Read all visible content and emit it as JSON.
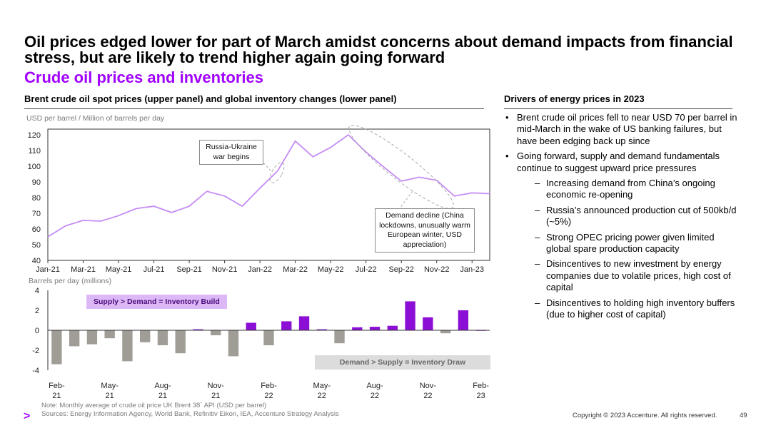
{
  "header": {
    "title": "Oil prices edged lower for part of March amidst concerns about demand impacts from financial stress, but are likely to trend higher again going forward",
    "subtitle": "Crude oil prices and inventories"
  },
  "left_panel": {
    "heading": "Brent crude oil spot prices (upper panel) and global inventory changes (lower panel)",
    "upper_unit": "USD per barrel / Million of barrels per day",
    "lower_unit": "Barrels per day (millions)",
    "callout_war": "Russia-Ukraine war begins",
    "callout_demand": "Demand decline (China lockdowns, unusually warm European winter, USD appreciation)",
    "tag_build": "Supply > Demand = Inventory Build",
    "tag_draw": "Demand > Supply = Inventory Draw",
    "note": "Note: Monthly average of crude oil price UK Brent 38` API (USD per barrel)",
    "sources": "Sources: Energy Information Agency, World Bank, Refinitiv Eikon, IEA, Accenture Strategy Analysis"
  },
  "right_panel": {
    "heading": "Drivers of energy prices in 2023",
    "bullets": [
      "Brent crude oil prices fell to near USD 70 per barrel in mid-March in the wake of US banking failures, but have been edging back up since",
      "Going forward, supply and demand fundamentals continue to suggest upward price pressures"
    ],
    "sub_bullets": [
      "Increasing demand from China’s ongoing economic re-opening",
      "Russia’s announced production cut of 500kb/d (~5%)",
      "Strong OPEC pricing power given limited global spare production capacity",
      "Disincentives to new investment by energy companies due to volatile prices, high cost of capital",
      "Disincentives to holding high inventory buffers (due to higher cost of capital)"
    ]
  },
  "footer": {
    "copyright": "Copyright © 2023 Accenture. All rights reserved.",
    "page": "49",
    "logo": ">"
  },
  "colors": {
    "line": "#c58cf5",
    "build": "#8c0fd6",
    "draw": "#a09c96",
    "accent": "#a100ff",
    "build_tag_bg": "#ddb8f7",
    "draw_tag_bg": "#dcdcdc"
  },
  "chart_data": [
    {
      "type": "line",
      "ylim": [
        40,
        120
      ],
      "yticks": [
        40,
        50,
        60,
        70,
        80,
        90,
        100,
        110,
        120
      ],
      "xtick_labels": [
        "Jan-21",
        "Mar-21",
        "May-21",
        "Jul-21",
        "Sep-21",
        "Nov-21",
        "Jan-22",
        "Mar-22",
        "May-22",
        "Jul-22",
        "Sep-22",
        "Nov-22",
        "Jan-23"
      ],
      "x": [
        "Jan-21",
        "Feb-21",
        "Mar-21",
        "Apr-21",
        "May-21",
        "Jun-21",
        "Jul-21",
        "Aug-21",
        "Sep-21",
        "Oct-21",
        "Nov-21",
        "Dec-21",
        "Jan-22",
        "Feb-22",
        "Mar-22",
        "Apr-22",
        "May-22",
        "Jun-22",
        "Jul-22",
        "Aug-22",
        "Sep-22",
        "Oct-22",
        "Nov-22",
        "Dec-22",
        "Jan-23",
        "Feb-23"
      ],
      "series": [
        {
          "values": [
            55,
            62,
            65.5,
            65,
            68.5,
            73,
            74.5,
            70.5,
            74.5,
            84,
            81,
            74.5,
            86,
            97,
            116,
            106,
            112,
            120,
            109,
            99.5,
            90.5,
            93,
            91,
            81,
            83,
            82.5
          ]
        }
      ]
    },
    {
      "type": "bar",
      "ylim": [
        -4,
        4
      ],
      "yticks": [
        -4,
        -2,
        0,
        2,
        4
      ],
      "xtick_labels": [
        "Feb-\n21",
        "May-\n21",
        "Aug-\n21",
        "Nov-\n21",
        "Feb-\n22",
        "May-\n22",
        "Aug-\n22",
        "Nov-\n22",
        "Feb-\n23"
      ],
      "categories": [
        "Feb-21",
        "Mar-21",
        "Apr-21",
        "May-21",
        "Jun-21",
        "Jul-21",
        "Aug-21",
        "Sep-21",
        "Oct-21",
        "Nov-21",
        "Dec-21",
        "Jan-22",
        "Feb-22",
        "Mar-22",
        "Apr-22",
        "May-22",
        "Jun-22",
        "Jul-22",
        "Aug-22",
        "Sep-22",
        "Oct-22",
        "Nov-22",
        "Dec-22",
        "Jan-23",
        "Feb-23"
      ],
      "values": [
        -3.4,
        -1.6,
        -1.4,
        -0.8,
        -3.1,
        -1.2,
        -1.5,
        -2.3,
        0.1,
        -0.5,
        -2.6,
        0.75,
        -1.5,
        0.9,
        1.4,
        0.1,
        -1.3,
        0.3,
        0.35,
        0.45,
        2.9,
        1.3,
        -0.3,
        2.0,
        0
      ]
    }
  ]
}
